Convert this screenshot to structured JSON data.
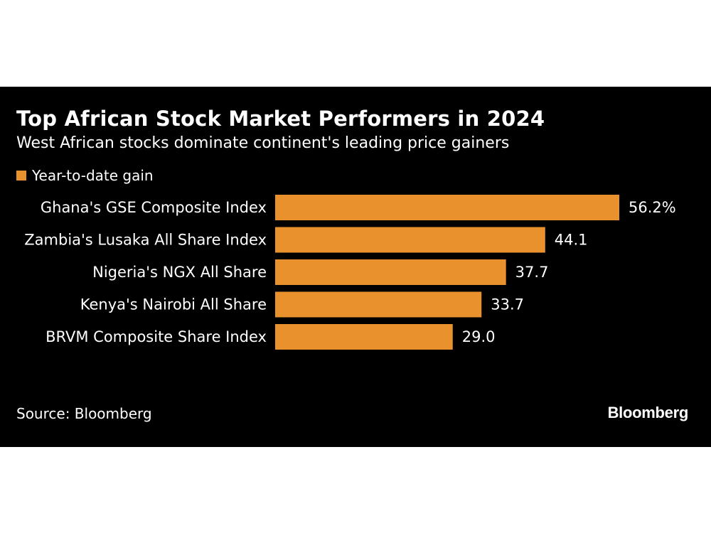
{
  "colors": {
    "background": "#000000",
    "bar": "#e8912d",
    "text": "#ffffff"
  },
  "chart_data": {
    "type": "bar",
    "orientation": "horizontal",
    "title": "Top African Stock Market Performers in 2024",
    "subtitle": "West African stocks dominate continent's leading price gainers",
    "categories": [
      "Ghana's GSE Composite Index",
      "Zambia's Lusaka All Share Index",
      "Nigeria's NGX All Share",
      "Kenya's Nairobi All Share",
      "BRVM Composite Share Index"
    ],
    "series": [
      {
        "name": "Year-to-date gain",
        "values": [
          56.2,
          44.1,
          37.7,
          33.7,
          29.0
        ],
        "value_labels": [
          "56.2%",
          "44.1",
          "37.7",
          "33.7",
          "29.0"
        ]
      }
    ],
    "xlim": [
      0,
      56.2
    ],
    "legend": "top-left",
    "grid": false
  },
  "footer": {
    "source": "Source: Bloomberg",
    "brand": "Bloomberg"
  }
}
